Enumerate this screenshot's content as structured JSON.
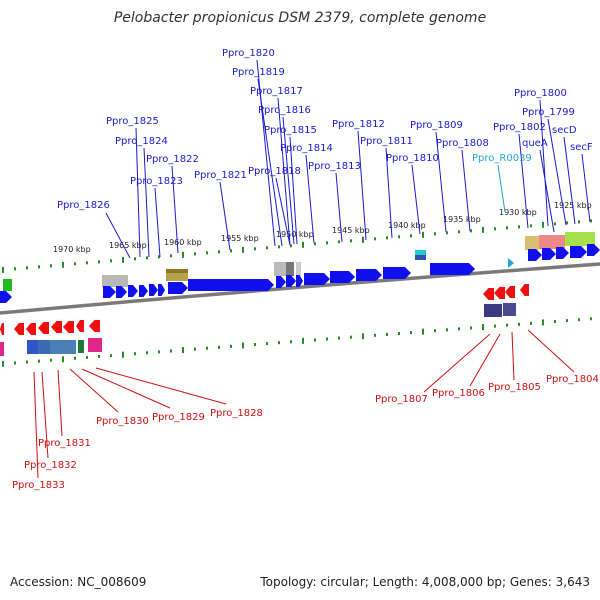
{
  "title": "Pelobacter propionicus DSM 2379, complete genome",
  "accession": "Accession: NC_008609",
  "summary": "Topology: circular; Length: 4,008,000 bp; Genes: 3,643",
  "colors": {
    "forward_label": "#1a1acc",
    "reverse_label": "#cc1111",
    "rna_label": "#22a6d6",
    "forward_gene": "#1010ee",
    "reverse_gene": "#ee1010",
    "tick": "#2a8a2a"
  },
  "scale_labels": [
    "1970 kbp",
    "1965 kbp",
    "1960 kbp",
    "1955 kbp",
    "1950 kbp",
    "1945 kbp",
    "1940 kbp",
    "1935 kbp",
    "1930 kbp",
    "1925 kbp"
  ],
  "forward_labels": [
    "Ppro_1826",
    "Ppro_1825",
    "Ppro_1824",
    "Ppro_1823",
    "Ppro_1822",
    "Ppro_1821",
    "Ppro_1820",
    "Ppro_1819",
    "Ppro_1818",
    "Ppro_1817",
    "Ppro_1816",
    "Ppro_1815",
    "Ppro_1814",
    "Ppro_1813",
    "Ppro_1812",
    "Ppro_1811",
    "Ppro_1810",
    "Ppro_1809",
    "Ppro_1808",
    "Ppro_R0039",
    "Ppro_1802",
    "queA",
    "Ppro_1800",
    "Ppro_1799",
    "secD",
    "secF"
  ],
  "reverse_labels": [
    "Ppro_1833",
    "Ppro_1832",
    "Ppro_1831",
    "Ppro_1830",
    "Ppro_1829",
    "Ppro_1828",
    "Ppro_1807",
    "Ppro_1806",
    "Ppro_1805",
    "Ppro_1804"
  ]
}
